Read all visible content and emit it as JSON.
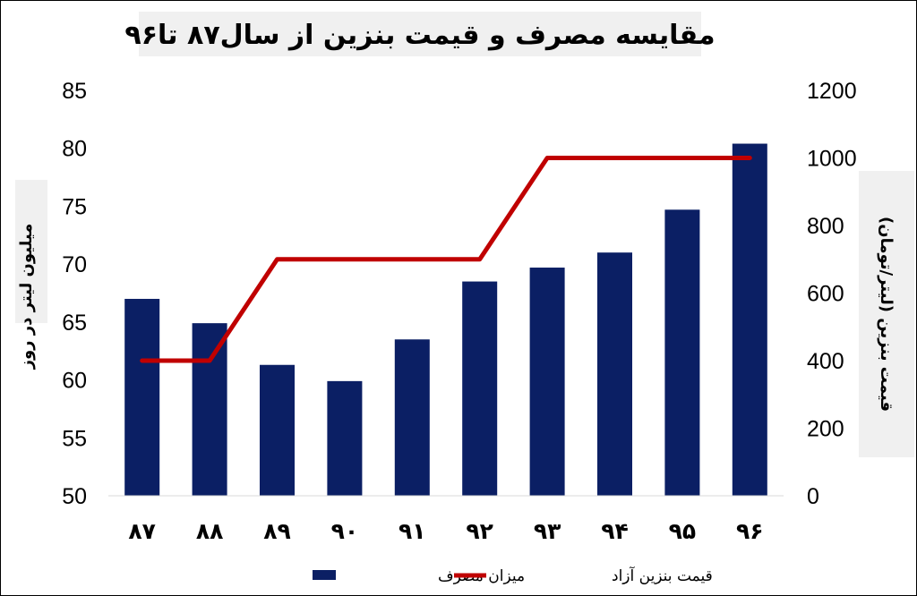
{
  "chart_data": {
    "type": "bar+line",
    "title": "مقایسه مصرف و قیمت بنزین از سال۸۷ تا۹۶",
    "categories": [
      "۸۷",
      "۸۸",
      "۸۹",
      "۹۰",
      "۹۱",
      "۹۲",
      "۹۳",
      "۹۴",
      "۹۵",
      "۹۶"
    ],
    "series": [
      {
        "name": "میزان مصرف",
        "kind": "bar",
        "axis": "left",
        "color": "#0b1f64",
        "values": [
          67.0,
          64.9,
          61.3,
          59.9,
          63.5,
          68.5,
          69.7,
          71.0,
          74.7,
          80.4
        ]
      },
      {
        "name": "قیمت بنزین آزاد",
        "kind": "line",
        "axis": "right",
        "color": "#c00000",
        "values": [
          400,
          400,
          700,
          700,
          700,
          700,
          1000,
          1000,
          1000,
          1000
        ]
      }
    ],
    "left_axis": {
      "label": "میلیون  لیتر  در روز",
      "min": 50,
      "max": 85,
      "ticks": [
        50,
        55,
        60,
        65,
        70,
        75,
        80,
        85
      ]
    },
    "right_axis": {
      "label": "قیمت بنزین (لیتر/تومان)",
      "min": 0,
      "max": 1200,
      "ticks": [
        0,
        200,
        400,
        600,
        800,
        1000,
        1200
      ]
    },
    "grid": false,
    "legend_position": "bottom"
  }
}
